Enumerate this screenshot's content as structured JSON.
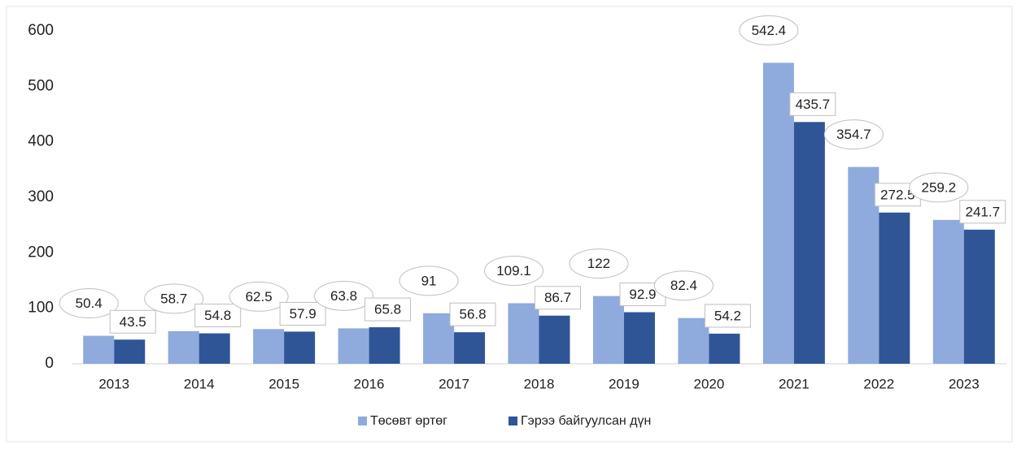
{
  "chart_data": {
    "type": "bar",
    "categories": [
      "2013",
      "2014",
      "2015",
      "2016",
      "2017",
      "2018",
      "2019",
      "2020",
      "2021",
      "2022",
      "2023"
    ],
    "series": [
      {
        "name": "Төсөвт өртөг",
        "color": "#8faadc",
        "values": [
          50.4,
          58.7,
          62.5,
          63.8,
          91,
          109.1,
          122,
          82.4,
          542.4,
          354.7,
          259.2
        ]
      },
      {
        "name": "Гэрээ байгуулсан дүн",
        "color": "#2f5597",
        "values": [
          43.5,
          54.8,
          57.9,
          65.8,
          56.8,
          86.7,
          92.9,
          54.2,
          435.7,
          272.5,
          241.7
        ]
      }
    ],
    "ylim": [
      0,
      600
    ],
    "yticks": [
      0,
      100,
      200,
      300,
      400,
      500,
      600
    ],
    "legend": "bottom"
  }
}
